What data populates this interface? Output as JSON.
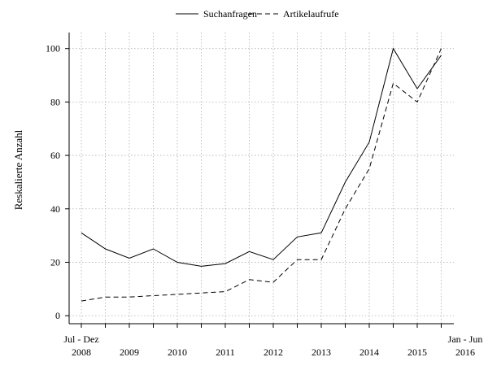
{
  "chart_data": {
    "type": "line",
    "title": "",
    "xlabel": "",
    "ylabel": "Reskalierte Anzahl",
    "ylim": [
      -3,
      106
    ],
    "yticks": [
      0,
      20,
      40,
      60,
      80,
      100
    ],
    "grid": true,
    "legend_position": "top",
    "x_labels": [
      {
        "index": 0,
        "top": "Jul - Dez",
        "bottom": "2008"
      },
      {
        "index": 2,
        "top": "",
        "bottom": "2009"
      },
      {
        "index": 4,
        "top": "",
        "bottom": "2010"
      },
      {
        "index": 6,
        "top": "",
        "bottom": "2011"
      },
      {
        "index": 8,
        "top": "",
        "bottom": "2012"
      },
      {
        "index": 10,
        "top": "",
        "bottom": "2013"
      },
      {
        "index": 12,
        "top": "",
        "bottom": "2014"
      },
      {
        "index": 14,
        "top": "",
        "bottom": "2015"
      },
      {
        "index": 16,
        "top": "Jan - Jun",
        "bottom": "2016"
      }
    ],
    "series": [
      {
        "name": "Suchanfragen",
        "style": "solid",
        "values": [
          31,
          25,
          21.5,
          25,
          20,
          18.5,
          19.5,
          24,
          21,
          29.5,
          31,
          50,
          65,
          100,
          85,
          97.5
        ]
      },
      {
        "name": "Artikelaufrufe",
        "style": "dashed",
        "values": [
          5.5,
          7,
          7,
          7.5,
          8,
          8.5,
          9,
          13.5,
          12.5,
          21,
          21,
          40,
          55,
          87,
          80,
          100
        ]
      }
    ],
    "colors": {
      "line": "#000000",
      "grid": "#b0b0b0",
      "background": "#ffffff"
    }
  }
}
